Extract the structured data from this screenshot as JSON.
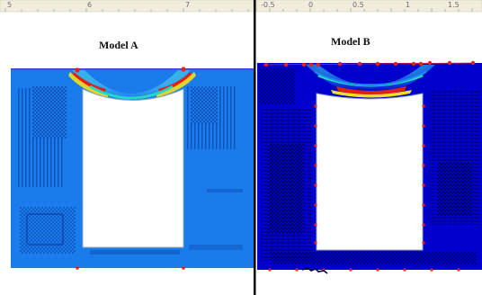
{
  "panels": [
    {
      "title": "Model A",
      "ruler_ticks": [
        "5",
        "6",
        "7"
      ],
      "colors": {
        "field": "#1a7bea",
        "dark": "#0f4fb8",
        "hot": "#e12010",
        "warm": "#f0e020",
        "mid": "#24d8c4",
        "opening": "#ffffff",
        "marker": "#e42222"
      }
    },
    {
      "title": "Model B",
      "ruler_ticks": [
        "-0.5",
        "0",
        "0.5",
        "1",
        "1.5"
      ],
      "colors": {
        "field": "#0000cc",
        "dark": "#00004a",
        "hot": "#e12010",
        "warm": "#f0e020",
        "mid": "#24d8c4",
        "opening": "#ffffff",
        "marker": "#e42222"
      }
    }
  ],
  "ruler_color": "#f1eddd",
  "divider_color": "#000000"
}
